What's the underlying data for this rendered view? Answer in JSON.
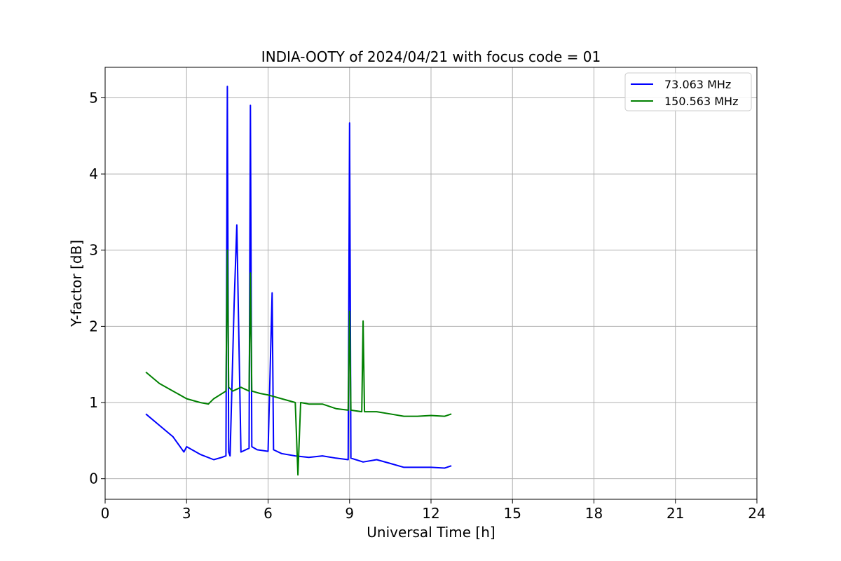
{
  "chart_data": {
    "type": "line",
    "title": "INDIA-OOTY of 2024/04/21 with focus code = 01",
    "xlabel": "Universal Time [h]",
    "ylabel": "Y-factor [dB]",
    "xlim": [
      0,
      24
    ],
    "ylim": [
      -0.27,
      5.4
    ],
    "xticks": [
      0,
      3,
      6,
      9,
      12,
      15,
      18,
      21,
      24
    ],
    "xtick_labels": [
      "0",
      "3",
      "6",
      "9",
      "12",
      "15",
      "18",
      "21",
      "24"
    ],
    "yticks": [
      0,
      1,
      2,
      3,
      4,
      5
    ],
    "ytick_labels": [
      "0",
      "1",
      "2",
      "3",
      "4",
      "5"
    ],
    "grid": true,
    "legend_position": "top-right",
    "series": [
      {
        "name": "73.063 MHz",
        "color": "#0000ff",
        "x": [
          1.5,
          2.0,
          2.5,
          2.9,
          3.0,
          3.5,
          4.0,
          4.3,
          4.45,
          4.5,
          4.55,
          4.6,
          4.75,
          4.85,
          5.0,
          5.3,
          5.35,
          5.4,
          5.6,
          6.0,
          6.15,
          6.2,
          6.5,
          7.0,
          7.5,
          8.0,
          8.5,
          8.95,
          9.0,
          9.05,
          9.5,
          10.0,
          10.5,
          11.0,
          11.5,
          12.0,
          12.5,
          12.75
        ],
        "y": [
          0.85,
          0.7,
          0.55,
          0.35,
          0.42,
          0.32,
          0.25,
          0.28,
          0.3,
          5.15,
          0.35,
          0.3,
          2.3,
          3.33,
          0.35,
          0.4,
          4.9,
          0.42,
          0.38,
          0.36,
          2.44,
          0.38,
          0.33,
          0.3,
          0.28,
          0.3,
          0.27,
          0.25,
          4.67,
          0.27,
          0.22,
          0.25,
          0.2,
          0.15,
          0.15,
          0.15,
          0.14,
          0.17
        ]
      },
      {
        "name": "150.563 MHz",
        "color": "#008000",
        "x": [
          1.5,
          2.0,
          2.5,
          3.0,
          3.5,
          3.8,
          4.0,
          4.45,
          4.5,
          4.55,
          4.7,
          5.0,
          5.3,
          5.35,
          5.4,
          5.7,
          6.0,
          6.5,
          7.0,
          7.1,
          7.2,
          7.5,
          8.0,
          8.5,
          8.95,
          9.0,
          9.05,
          9.45,
          9.5,
          9.55,
          10.0,
          10.5,
          11.0,
          11.5,
          12.0,
          12.5,
          12.75
        ],
        "y": [
          1.4,
          1.25,
          1.15,
          1.05,
          1.0,
          0.98,
          1.05,
          1.15,
          3.0,
          1.2,
          1.15,
          1.2,
          1.15,
          2.7,
          1.15,
          1.12,
          1.1,
          1.05,
          1.0,
          0.05,
          1.0,
          0.98,
          0.98,
          0.92,
          0.9,
          2.2,
          0.9,
          0.88,
          2.07,
          0.88,
          0.88,
          0.85,
          0.82,
          0.82,
          0.83,
          0.82,
          0.85
        ]
      }
    ]
  }
}
